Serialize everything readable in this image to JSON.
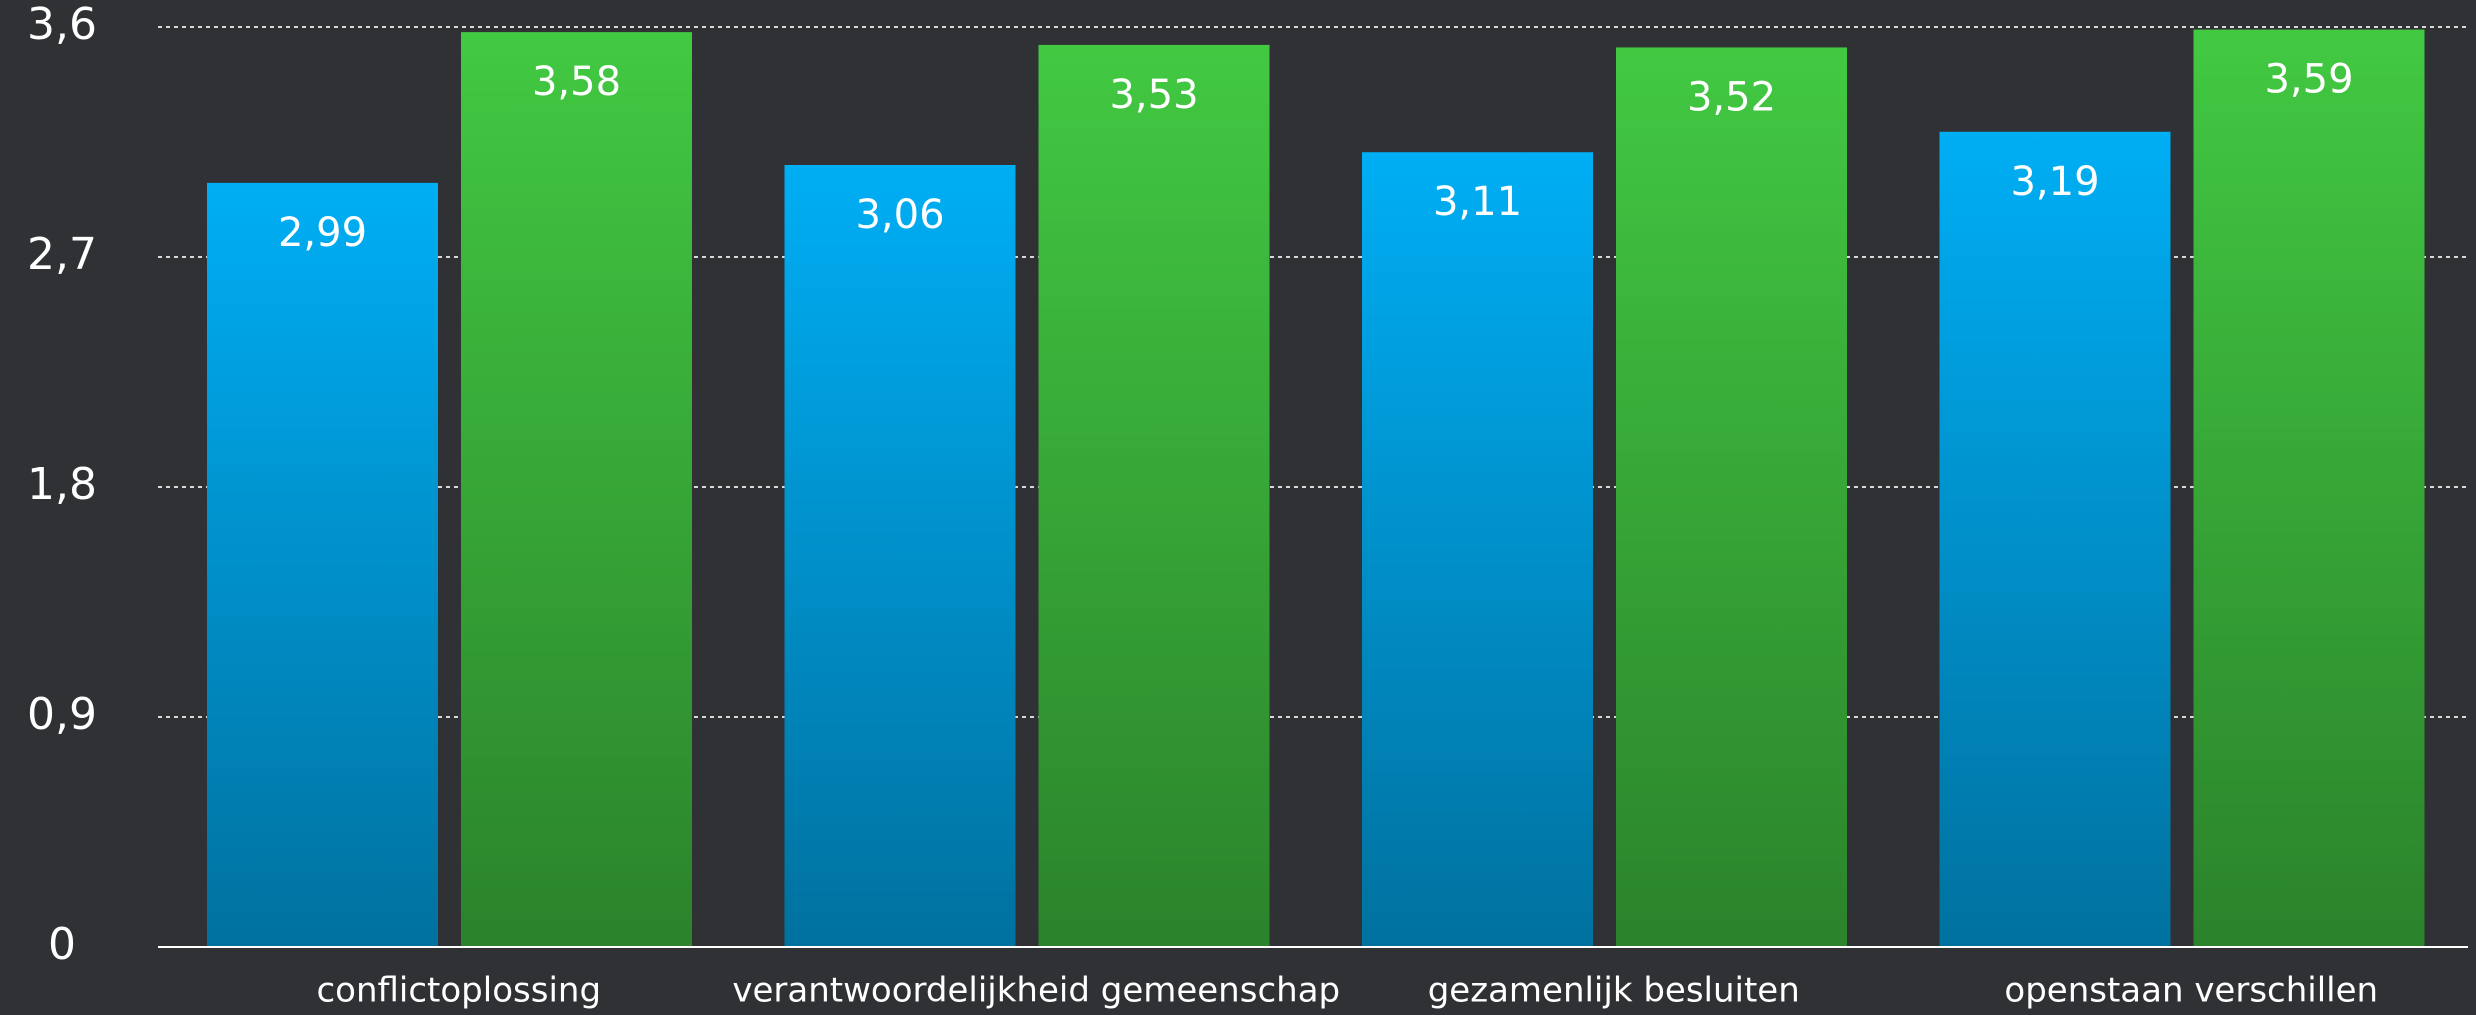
{
  "chart_data": {
    "type": "bar",
    "categories": [
      "conflictoplossing",
      "verantwoordelijkheid gemeenschap",
      "gezamenlijk besluiten",
      "openstaan verschillen"
    ],
    "series": [
      {
        "color": "#00aef4",
        "values": [
          2.99,
          3.06,
          3.11,
          3.19
        ],
        "value_labels": [
          "2,99",
          "3,06",
          "3,11",
          "3,19"
        ]
      },
      {
        "color": "#42c942",
        "values": [
          3.58,
          3.53,
          3.52,
          3.59
        ],
        "value_labels": [
          "3,58",
          "3,53",
          "3,52",
          "3,59"
        ]
      }
    ],
    "ylim": [
      0,
      3.6
    ],
    "yticks": [
      0,
      {
        "value": 0.9,
        "label": "0,9"
      },
      {
        "value": 1.8,
        "label": "1,8"
      },
      {
        "value": 2.7,
        "label": "2,7"
      },
      {
        "value": 3.6,
        "label": "3,6"
      }
    ],
    "grid": true
  }
}
